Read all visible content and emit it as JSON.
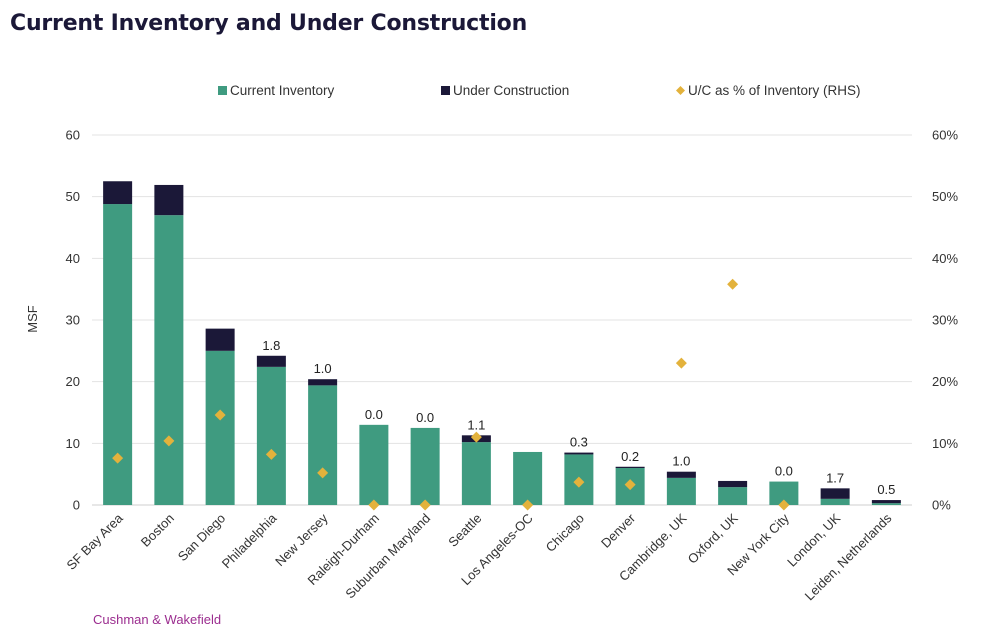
{
  "title": "Current Inventory and Under Construction",
  "source": "Cushman & Wakefield",
  "colors": {
    "current_inventory": "#3f9b80",
    "under_construction": "#1b1838",
    "uc_pct": "#e3b23c",
    "grid": "#e3e3e3",
    "axis_text": "#333333"
  },
  "chart_data": {
    "type": "bar",
    "stacked": true,
    "title": "Current Inventory and Under Construction",
    "ylabel": "MSF",
    "ylim": [
      0,
      60
    ],
    "y_ticks": [
      "0",
      "10",
      "20",
      "30",
      "40",
      "50",
      "60"
    ],
    "y2lim": [
      0,
      60
    ],
    "y2_ticks": [
      "0%",
      "10%",
      "20%",
      "30%",
      "40%",
      "50%",
      "60%"
    ],
    "grid": true,
    "legend_position": "top",
    "categories": [
      "SF Bay Area",
      "Boston",
      "San Diego",
      "Philadelphia",
      "New Jersey",
      "Raleigh-Durham",
      "Suburban Maryland",
      "Seattle",
      "Los Angeles-OC",
      "Chicago",
      "Denver",
      "Cambridge, UK",
      "Oxford, UK",
      "New York City",
      "London, UK",
      "Leiden, Netherlands"
    ],
    "series": [
      {
        "name": "Current Inventory",
        "type": "bar",
        "axis": "left",
        "values": [
          48.8,
          47.0,
          25.0,
          22.4,
          19.4,
          13.0,
          12.5,
          10.2,
          8.6,
          8.2,
          6.0,
          4.4,
          2.9,
          3.8,
          1.0,
          0.3
        ]
      },
      {
        "name": "Under Construction",
        "type": "bar",
        "axis": "left",
        "values": [
          3.7,
          4.9,
          3.6,
          1.8,
          1.0,
          0.0,
          0.0,
          1.1,
          0.0,
          0.3,
          0.2,
          1.0,
          1.0,
          0.0,
          1.7,
          0.5
        ]
      },
      {
        "name": "U/C as % of Inventory (RHS)",
        "type": "scatter",
        "axis": "right",
        "values": [
          7.6,
          10.4,
          14.6,
          8.2,
          5.2,
          0.0,
          0.0,
          11.0,
          0.0,
          3.7,
          3.3,
          23.0,
          35.8,
          0.0,
          null,
          null
        ]
      }
    ],
    "data_labels": [
      "",
      "",
      "",
      "1.8",
      "1.0",
      "0.0",
      "0.0",
      "1.1",
      "",
      "0.3",
      "0.2",
      "1.0",
      "",
      "0.0",
      "1.7",
      "0.5"
    ]
  }
}
